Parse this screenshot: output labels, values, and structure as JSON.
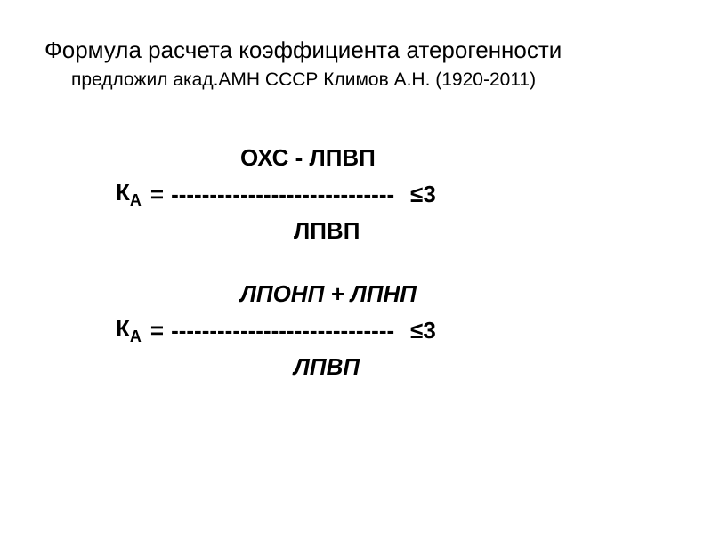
{
  "title": {
    "main": "Формула расчета коэффициента атерогенности",
    "sub": "предложил акад.АМН СССР Климов А.Н. (1920-2011)"
  },
  "formula1": {
    "numerator": "ОХС  -  ЛПВП",
    "ka_label": "К",
    "ka_sub": "А",
    "equals": "=",
    "dashes": "-----------------------------",
    "result": "≤3",
    "denominator": "ЛПВП"
  },
  "formula2": {
    "numerator": "ЛПОНП  +  ЛПНП",
    "ka_label": "К",
    "ka_sub": "А",
    "equals": "=",
    "dashes": "-----------------------------",
    "result": "≤3",
    "denominator": "ЛПВП"
  },
  "colors": {
    "background": "#ffffff",
    "text": "#000000"
  },
  "typography": {
    "title_main_fontsize": 26,
    "title_sub_fontsize": 21,
    "formula_fontsize": 26,
    "font_family": "Arial, sans-serif"
  }
}
